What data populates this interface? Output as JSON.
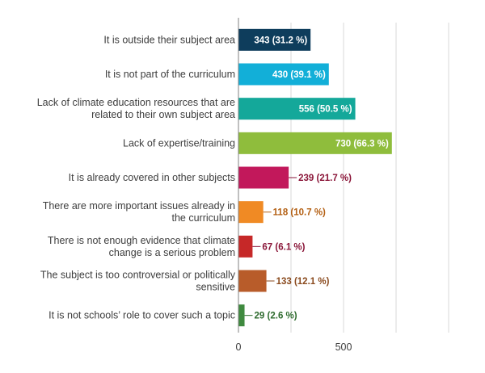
{
  "chart_data": {
    "type": "bar",
    "orientation": "horizontal",
    "title": "",
    "xlabel": "",
    "ylabel": "",
    "xlim": [
      0,
      1000
    ],
    "grid": true,
    "xticks": [
      0,
      500
    ],
    "categories": [
      "It is outside their subject area",
      "It is not part of the curriculum",
      "Lack of climate education resources that are related to their own subject area",
      "Lack of expertise/training",
      "It is already covered in other subjects",
      "There are more important issues already in the curriculum",
      "There is not enough evidence that climate change is a serious problem",
      "The subject is too controversial or politically sensitive",
      "It is not schools' role to cover such a topic"
    ],
    "category_lines": [
      [
        "It is outside their subject area"
      ],
      [
        "It is not part of the curriculum"
      ],
      [
        "Lack of climate education resources that are",
        "related to their own subject area"
      ],
      [
        "Lack of expertise/training"
      ],
      [
        "It is already covered in other subjects"
      ],
      [
        "There are more important issues already in",
        "the curriculum"
      ],
      [
        "There is not enough evidence that climate",
        "change is a serious problem"
      ],
      [
        "The subject is too controversial or politically",
        "sensitive"
      ],
      [
        "It is not schools’ role to cover such a topic"
      ]
    ],
    "values": [
      343,
      430,
      556,
      730,
      239,
      118,
      67,
      133,
      29
    ],
    "percentages": [
      31.2,
      39.1,
      50.5,
      66.3,
      21.7,
      10.7,
      6.1,
      12.1,
      2.6
    ],
    "data_labels": [
      "343 (31.2 %)",
      "430 (39.1 %)",
      "556 (50.5 %)",
      "730 (66.3 %)",
      "239 (21.7 %)",
      "118 (10.7 %)",
      "67 (6.1 %)",
      "133 (12.1 %)",
      "29 (2.6 %)"
    ],
    "label_inside": [
      true,
      true,
      true,
      true,
      false,
      false,
      false,
      false,
      false
    ],
    "colors": [
      "#0e3d5c",
      "#12afd8",
      "#14a89a",
      "#8fbd3c",
      "#c2185b",
      "#f08a24",
      "#c62828",
      "#b85c2a",
      "#3f8a3f"
    ],
    "label_colors": [
      "#ffffff",
      "#ffffff",
      "#ffffff",
      "#ffffff",
      "#8a1538",
      "#b35f12",
      "#8a1538",
      "#8a4a1e",
      "#2e6b2e"
    ]
  }
}
